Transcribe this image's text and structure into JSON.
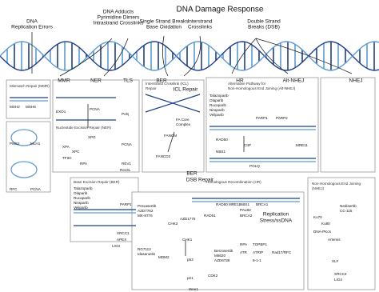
{
  "title": "DNA Damage Response",
  "damage_types": [
    [
      "DNA",
      "Replication Errors"
    ],
    [
      "DNA Adducts",
      "Pyrimidine Dimers",
      "Intrastrand Crosslinks"
    ],
    [
      "Single Strand Breaks",
      "Base Oxidation"
    ],
    [
      "Interstrand",
      "Crosslinks"
    ],
    [
      "Double Strand",
      "Breaks (DSB)"
    ]
  ],
  "pathways": [
    "MMR",
    "NER",
    "TLS",
    "BER",
    "HR",
    "Alt-NHEJ",
    "NHEJ",
    "BER",
    "DSB Repair",
    "ICL Repair"
  ],
  "replication_stress": [
    "Replication",
    "Stress/ssDNA"
  ],
  "panels": [
    {
      "title": [
        "Mismatch Repair (MMR)"
      ],
      "nodes": [
        "MSH2",
        "MSH6",
        "EXO1",
        "PMS2",
        "MLH1",
        "RFC",
        "PCNA"
      ]
    },
    {
      "title": [
        "Nucleotide Excision Repair (NER)"
      ],
      "nodes": [
        "PCNA",
        "XPC",
        "TFIIH",
        "XPA",
        "RPA",
        "XPG",
        "Polη",
        "REV1",
        "PCNA",
        "Rev3L"
      ]
    },
    {
      "title": [
        "Interstrand Crosslink (ICL)",
        "Repair"
      ],
      "nodes": [
        "FANCM",
        "FA Core",
        "Complex",
        "FANCD2"
      ]
    },
    {
      "title": [
        "Alternative Pathway for",
        "Non-Homologous End Joining (Alt-NHEJ)"
      ],
      "nodes": [
        "Talazoparib",
        "Olaparib",
        "Rucaparib",
        "Niraparib",
        "Veliparib",
        "PARP1",
        "PARP2",
        "RAD50",
        "MRE11",
        "NBS1",
        "CtIP",
        "POLQ"
      ]
    },
    {
      "title": [
        "Base Excision Repair (BER)"
      ],
      "nodes": [
        "Talazoparib",
        "Olaparib",
        "Rucaparib",
        "Niraparib",
        "Veliparib",
        "PARP1",
        "XRCC1",
        "APEX",
        "LIG3"
      ]
    },
    {
      "title": [
        "Homologous Recombination (HR)"
      ],
      "nodes": [
        "RAD50",
        "MRE11",
        "NBS1",
        "BRCA1",
        "PALB2",
        "BRCA2",
        "RAD51",
        "RPA",
        "TOPBP1",
        "ATR",
        "ATRIP",
        "9-1-1",
        "Rad17/RFC",
        "Berzosertib",
        "M6620",
        "AZD6738",
        "CHK1",
        "Prexasertib",
        "AZD7762",
        "MK-8776",
        "CHK2",
        "RG7112",
        "Idasanutlin",
        "MDM2",
        "p53",
        "p21",
        "CDK2",
        "Wee1",
        "AZD1775"
      ]
    },
    {
      "title": [
        "Non-Homologous End Joining",
        "(NHEJ)"
      ],
      "nodes": [
        "Ku70",
        "Ku80",
        "DNA-PKcs",
        "Nedisertib",
        "CC-115",
        "Artemis",
        "XLF",
        "XRCC4",
        "LIG4"
      ]
    }
  ]
}
